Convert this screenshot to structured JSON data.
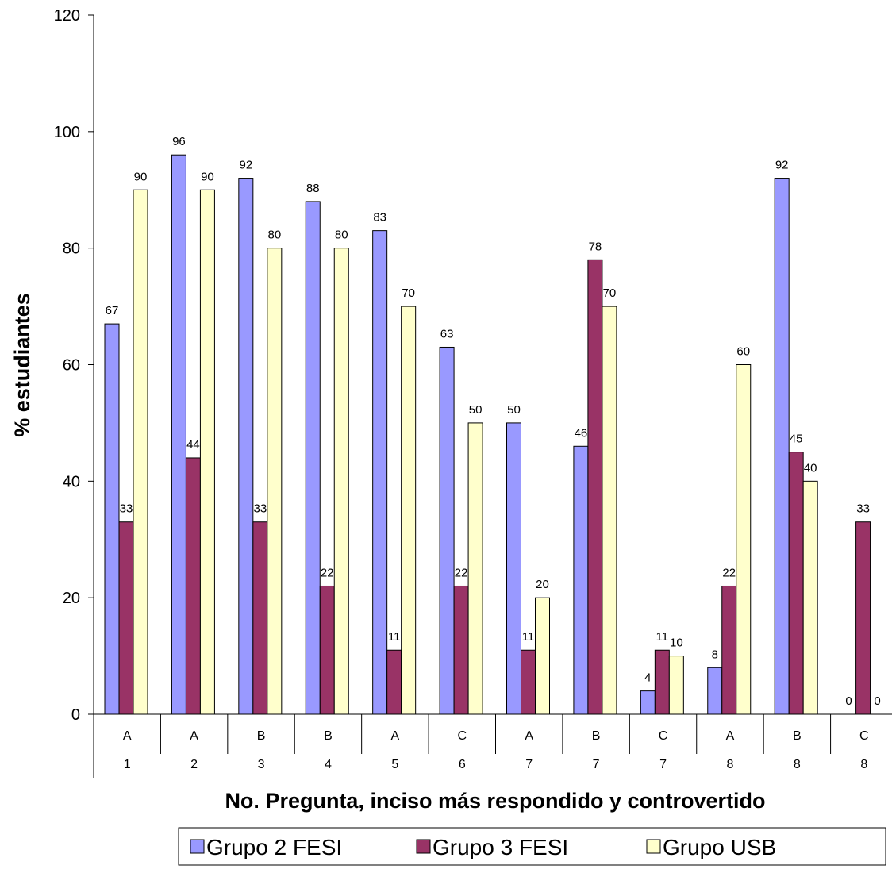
{
  "chart_data": {
    "type": "bar",
    "title": "",
    "xlabel": "No. Pregunta, inciso más respondido y controvertido",
    "ylabel": "% estudiantes",
    "ylim": [
      0,
      120
    ],
    "yticks": [
      0,
      20,
      40,
      60,
      80,
      100,
      120
    ],
    "grid": false,
    "legend_position": "bottom",
    "categories": [
      {
        "inciso": "A",
        "pregunta": "1"
      },
      {
        "inciso": "A",
        "pregunta": "2"
      },
      {
        "inciso": "B",
        "pregunta": "3"
      },
      {
        "inciso": "B",
        "pregunta": "4"
      },
      {
        "inciso": "A",
        "pregunta": "5"
      },
      {
        "inciso": "C",
        "pregunta": "6"
      },
      {
        "inciso": "A",
        "pregunta": "7"
      },
      {
        "inciso": "B",
        "pregunta": "7"
      },
      {
        "inciso": "C",
        "pregunta": "7"
      },
      {
        "inciso": "A",
        "pregunta": "8"
      },
      {
        "inciso": "B",
        "pregunta": "8"
      },
      {
        "inciso": "C",
        "pregunta": "8"
      }
    ],
    "series": [
      {
        "name": "Grupo 2 FESI",
        "color": "#9999ff",
        "values": [
          67,
          96,
          92,
          88,
          83,
          63,
          50,
          46,
          4,
          8,
          92,
          0
        ]
      },
      {
        "name": "Grupo 3 FESI",
        "color": "#993366",
        "values": [
          33,
          44,
          33,
          22,
          11,
          22,
          11,
          78,
          11,
          22,
          45,
          33
        ]
      },
      {
        "name": "Grupo USB",
        "color": "#ffffcc",
        "values": [
          90,
          90,
          80,
          80,
          70,
          50,
          20,
          70,
          10,
          60,
          40,
          0
        ]
      }
    ]
  }
}
